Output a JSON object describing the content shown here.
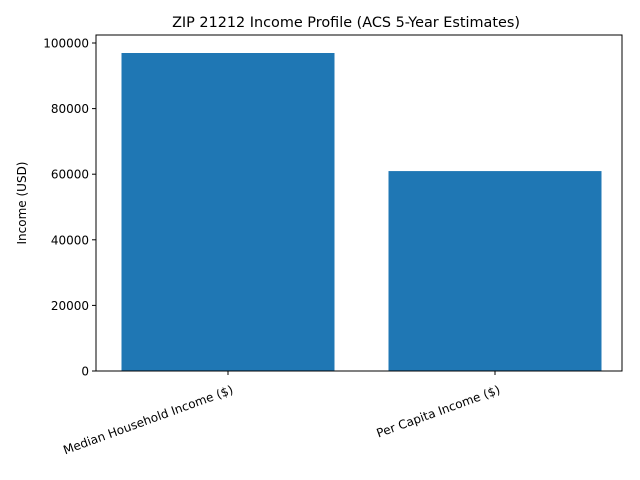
{
  "chart_data": {
    "type": "bar",
    "title": "ZIP 21212 Income Profile (ACS 5-Year Estimates)",
    "xlabel": "",
    "ylabel": "Income (USD)",
    "categories": [
      "Median Household Income ($)",
      "Per Capita Income ($)"
    ],
    "values": [
      96950,
      60950
    ],
    "ylim": [
      0,
      101800
    ],
    "yticks": [
      0,
      20000,
      40000,
      60000,
      80000,
      100000
    ],
    "ytick_labels": [
      "0",
      "20000",
      "40000",
      "60000",
      "80000",
      "100000"
    ],
    "xtick_rotation": 20,
    "grid": false,
    "legend": null,
    "bar_color": "#1f77b4"
  }
}
